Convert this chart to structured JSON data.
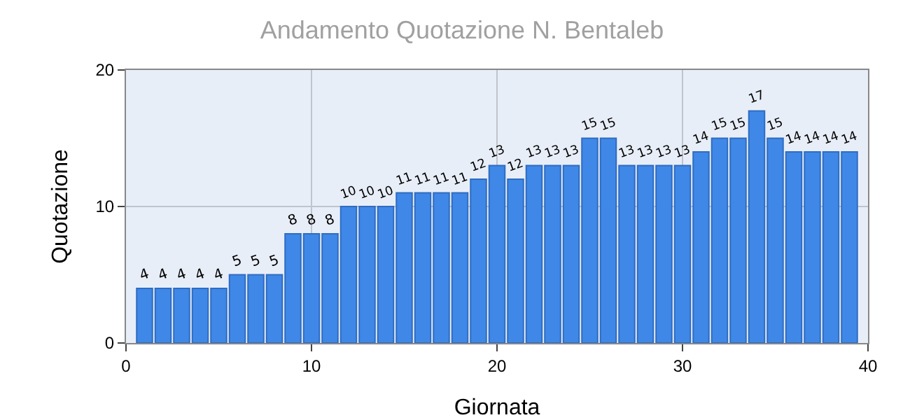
{
  "chart_data": {
    "type": "bar",
    "title": "Andamento Quotazione N. Bentaleb",
    "xlabel": "Giornata",
    "ylabel": "Quotazione",
    "x": [
      1,
      2,
      3,
      4,
      5,
      6,
      7,
      8,
      9,
      10,
      11,
      12,
      13,
      14,
      15,
      16,
      17,
      18,
      19,
      20,
      21,
      22,
      23,
      24,
      25,
      26,
      27,
      28,
      29,
      30,
      31,
      32,
      33,
      34,
      35,
      36,
      37,
      38,
      39
    ],
    "values": [
      4,
      4,
      4,
      4,
      4,
      5,
      5,
      5,
      8,
      8,
      8,
      10,
      10,
      10,
      11,
      11,
      11,
      11,
      12,
      13,
      12,
      13,
      13,
      13,
      15,
      15,
      13,
      13,
      13,
      13,
      14,
      15,
      15,
      17,
      15,
      14,
      14,
      14,
      14
    ],
    "color": "#3f88e8",
    "xlim": [
      0,
      40
    ],
    "xticks": [
      0,
      10,
      20,
      30,
      40
    ],
    "ylim": [
      0,
      20
    ],
    "yticks": [
      0,
      10,
      20
    ],
    "grid": true,
    "data_labels": true
  }
}
